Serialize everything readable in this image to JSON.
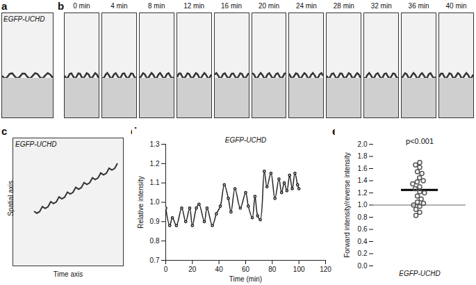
{
  "figure": {
    "a": {
      "label": "a",
      "text": "EGFP-UCHD"
    },
    "b": {
      "label": "b",
      "times": [
        "0 min",
        "4 min",
        "8 min",
        "12 min",
        "16 min",
        "20 min",
        "24 min",
        "28 min",
        "32 min",
        "36 min",
        "40 min"
      ]
    },
    "c": {
      "label": "c",
      "text": "EGFP-UCHD",
      "y_label": "Spatial axis",
      "x_label": "Time axis"
    }
  },
  "chart_data": [
    {
      "type": "line",
      "title": "d",
      "annotations": [
        "EGFP-UCHD"
      ],
      "x": [
        0,
        3,
        5,
        8,
        12,
        15,
        18,
        20,
        23,
        25,
        29,
        31,
        35,
        38,
        41,
        44,
        47,
        49,
        52,
        56,
        60,
        62,
        65,
        67,
        69,
        71,
        74,
        76,
        79,
        82,
        85,
        87,
        89,
        91,
        93,
        95,
        97,
        99,
        100
      ],
      "values": [
        0.97,
        0.88,
        0.92,
        0.88,
        0.97,
        0.9,
        0.97,
        0.88,
        0.97,
        0.99,
        0.9,
        0.97,
        0.88,
        0.94,
        0.98,
        1.09,
        1.02,
        0.95,
        1.07,
        0.97,
        1.05,
        0.98,
        0.92,
        1.03,
        0.93,
        0.91,
        1.16,
        1.08,
        1.15,
        1.02,
        1.12,
        1.05,
        1.1,
        1.06,
        1.14,
        1.07,
        1.15,
        1.09,
        1.07
      ],
      "xlim": [
        0,
        120
      ],
      "xticks": [
        0,
        20,
        40,
        60,
        80,
        100,
        120
      ],
      "ylim": [
        0.7,
        1.3
      ],
      "yticks": [
        0.7,
        0.8,
        0.9,
        {
          "value": 1,
          "label": "1.0"
        },
        1.1,
        1.2,
        1.3
      ],
      "x_label": "Time (min)",
      "y_label": "Relative intensity",
      "color": "#222222",
      "marker": "circle"
    },
    {
      "type": "scatter",
      "title": "e",
      "annotations": [
        "p<0.001",
        "EGFP-UCHD"
      ],
      "values": [
        1.7,
        1.66,
        1.62,
        1.55,
        1.52,
        1.45,
        1.4,
        1.38,
        1.35,
        1.3,
        1.27,
        1.22,
        1.2,
        1.15,
        1.1,
        1.05,
        1.03,
        1,
        0.98,
        0.93,
        0.88,
        0.83
      ],
      "mean": 1.25,
      "reference": 1,
      "ylim": [
        0,
        2
      ],
      "yticks": [
        {
          "value": 0,
          "label": "0.0"
        },
        0.2,
        0.4,
        0.6,
        0.8,
        {
          "value": 1,
          "label": "1.0"
        },
        1.2,
        1.4,
        1.6,
        1.8,
        {
          "value": 2,
          "label": "2.0"
        }
      ],
      "y_label": "Forward intensity/reverse intensity",
      "tick_labels": "y",
      "color": "#555555",
      "marker": "circle"
    }
  ]
}
